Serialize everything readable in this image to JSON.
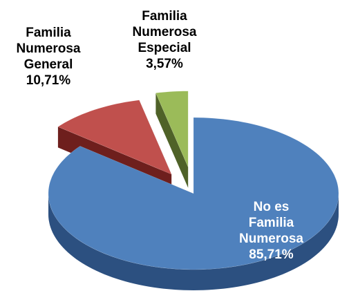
{
  "chart_data": {
    "type": "pie",
    "categories": [
      "No es Familia Numerosa",
      "Familia Numerosa General",
      "Familia Numerosa Especial"
    ],
    "values": [
      85.71,
      10.71,
      3.57
    ],
    "value_labels": [
      "85,71%",
      "10,71%",
      "3,57%"
    ],
    "colors": [
      "#4f81bd",
      "#c0504d",
      "#9bbb59"
    ],
    "side_colors": [
      "#2c5080",
      "#6e1f1d",
      "#4f6228"
    ]
  }
}
